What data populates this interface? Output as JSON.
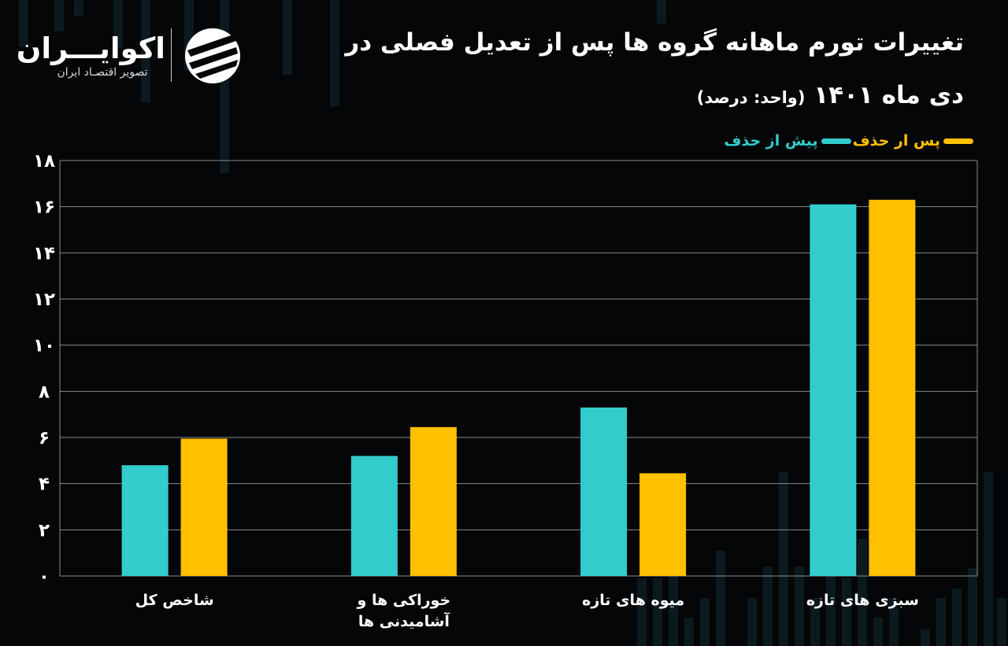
{
  "title": {
    "line1": "تغییرات تورم ماهانه گروه ها پس از تعدیل فصلی در",
    "line2_main": "دی ماه ۱۴۰۱",
    "line2_unit": "(واحد: درصد)"
  },
  "logo": {
    "name": "اکوایـــران",
    "tagline": "تصویر اقتصـاد ایران"
  },
  "colors": {
    "background": "#050607",
    "series_before": "#33cccc",
    "series_after": "#ffc000",
    "grid": "#8a8a8a"
  },
  "chart_data": {
    "type": "bar",
    "categories": [
      "شاخص کل",
      "خوراکی ها و\nآشامیدنی ها",
      "میوه های تازه",
      "سبزی های تازه"
    ],
    "series": [
      {
        "name": "پیش از حذف",
        "color": "#33cccc",
        "values": [
          4.8,
          5.2,
          7.3,
          16.1
        ]
      },
      {
        "name": "پس ار حذف",
        "color": "#ffc000",
        "values": [
          5.95,
          6.45,
          4.45,
          16.3
        ]
      }
    ],
    "y_ticks": [
      "۰",
      "۲",
      "۴",
      "۶",
      "۸",
      "۱۰",
      "۱۲",
      "۱۴",
      "۱۶",
      "۱۸"
    ],
    "ylim": [
      0,
      18
    ],
    "grid": true,
    "legend_position": "top-right"
  }
}
